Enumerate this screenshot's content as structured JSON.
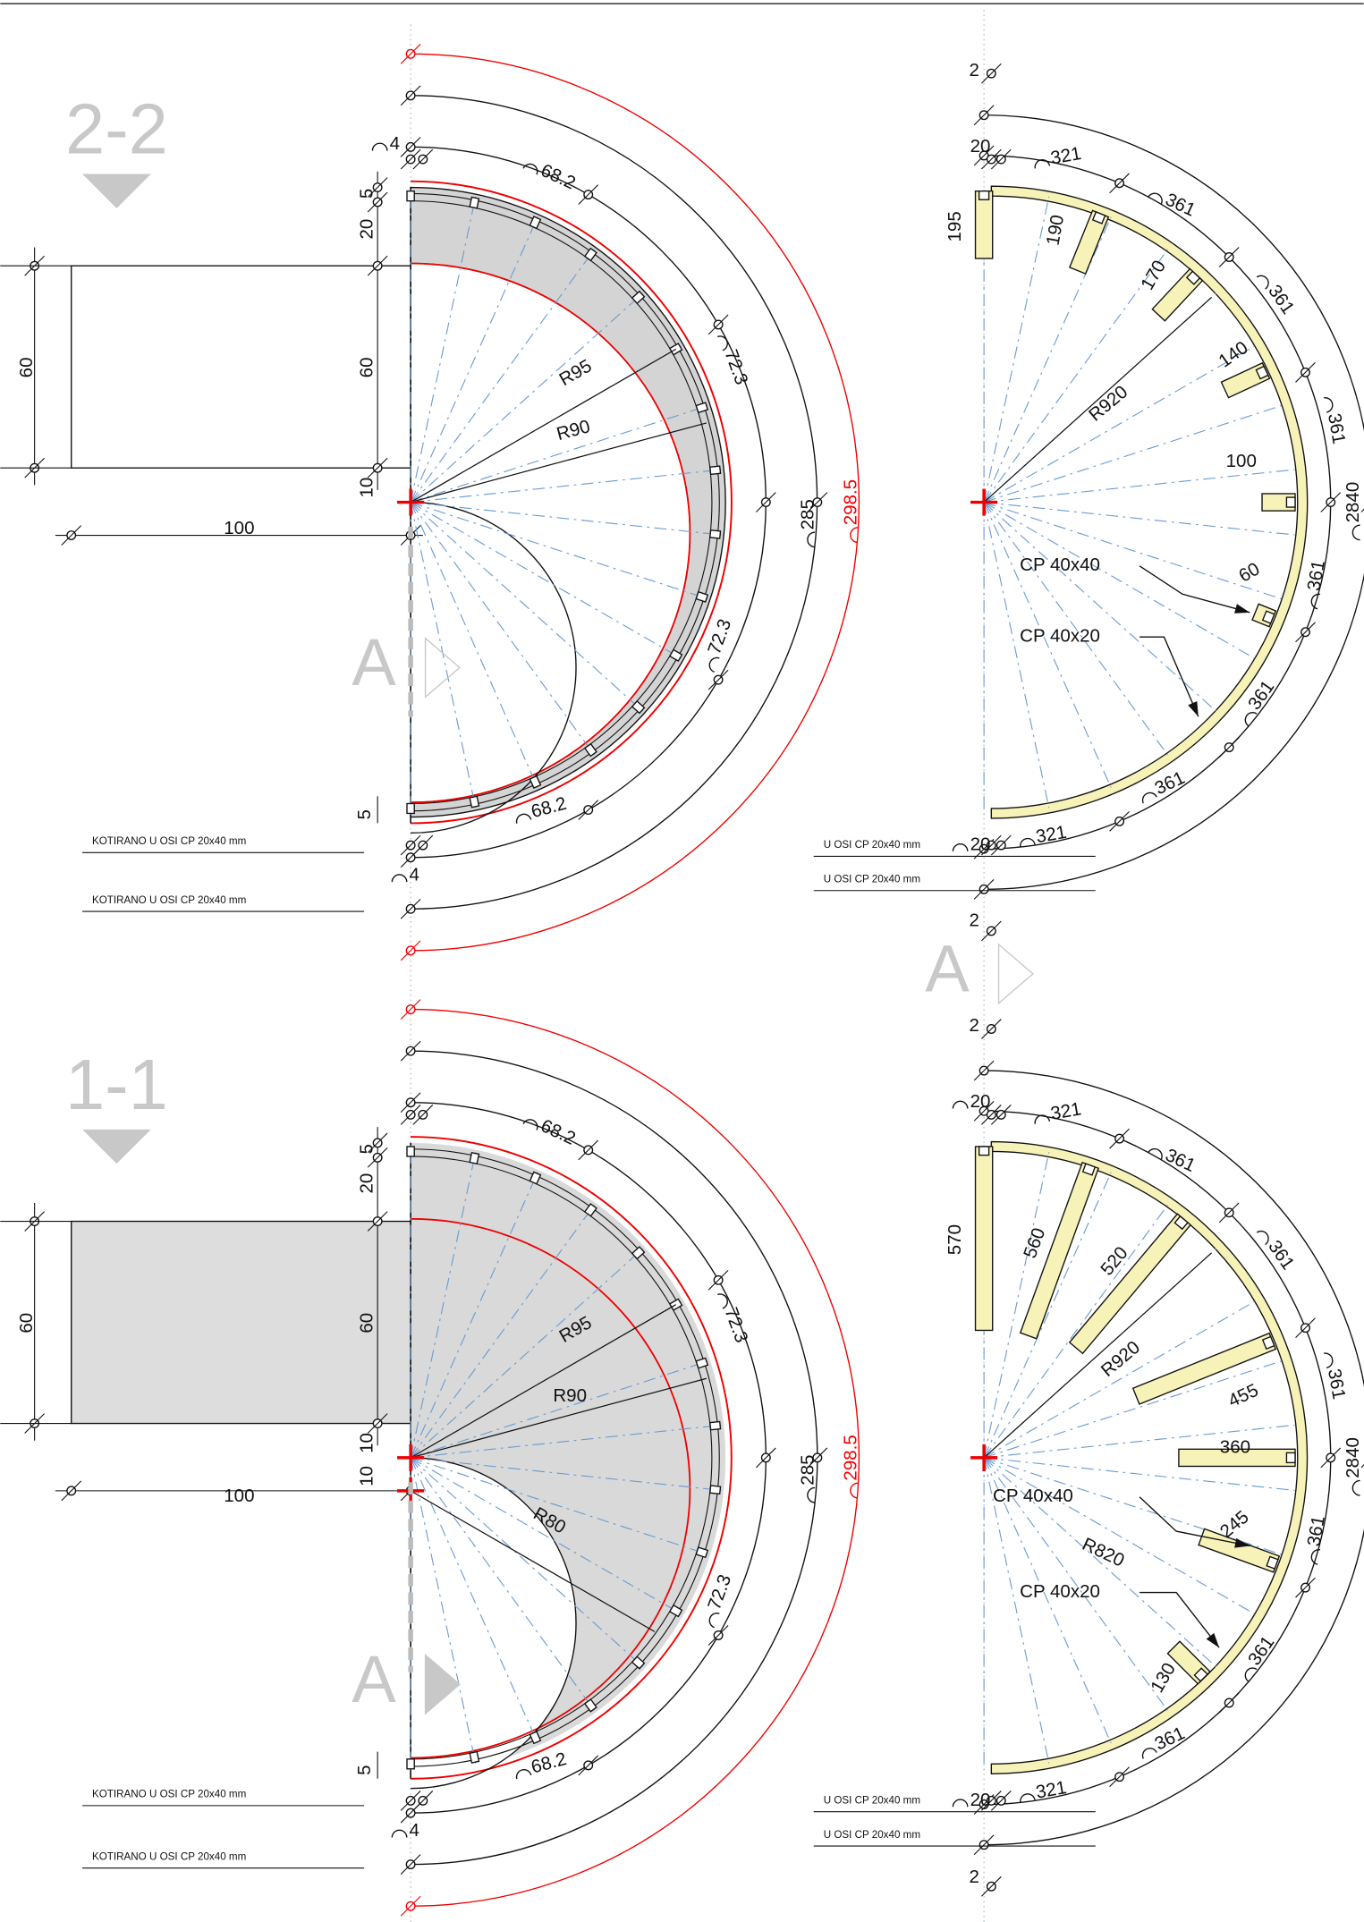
{
  "top_left": {
    "title": "2-2",
    "marker": "A",
    "labels": [
      "4",
      "5",
      "60",
      "20",
      "60",
      "10",
      "100",
      "68.2",
      "72.3",
      "R95",
      "R90",
      "285",
      "298.5",
      "72.3",
      "68.2",
      "5",
      "4"
    ],
    "notes": [
      "KOTIRANO U OSI CP 20x40 mm",
      "KOTIRANO U OSI CP 20x40 mm"
    ]
  },
  "top_right": {
    "labels": [
      "2",
      "20",
      "321",
      "195",
      "190",
      "361",
      "170",
      "361",
      "140",
      "R920",
      "361",
      "100",
      "2840",
      "CP 40x40",
      "60",
      "361",
      "CP 40x20",
      "361",
      "361",
      "321",
      "20",
      "2"
    ],
    "notes": [
      "U OSI CP 20x40 mm",
      "U OSI CP 20x40 mm"
    ]
  },
  "middle_marker": "A",
  "bottom_left": {
    "title": "1-1",
    "marker": "A",
    "labels": [
      "5",
      "20",
      "60",
      "60",
      "10",
      "10",
      "100",
      "68.2",
      "72.3",
      "R95",
      "R90",
      "R80",
      "285",
      "298.5",
      "72.3",
      "68.2",
      "5",
      "4"
    ],
    "notes": [
      "KOTIRANO U OSI CP 20x40 mm",
      "KOTIRANO U OSI CP 20x40 mm"
    ]
  },
  "bottom_right": {
    "labels": [
      "2",
      "20",
      "321",
      "361",
      "570",
      "560",
      "520",
      "R920",
      "361",
      "455",
      "361",
      "360",
      "2840",
      "CP 40x40",
      "245",
      "361",
      "R820",
      "CP 40x20",
      "130",
      "361",
      "361",
      "321",
      "20",
      "2"
    ],
    "notes": [
      "U OSI CP 20x40 mm",
      "U OSI CP 20x40 mm"
    ]
  }
}
